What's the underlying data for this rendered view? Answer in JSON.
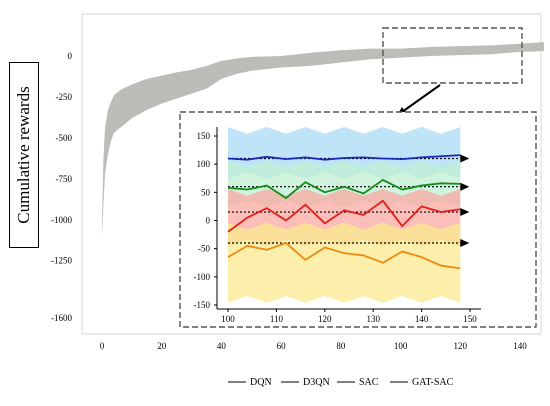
{
  "chart_data": [
    {
      "type": "area",
      "title": "",
      "xlabel": "",
      "ylabel": "Cumulative rewards",
      "xlim": [
        -8,
        150
      ],
      "ylim": [
        -1720,
        160
      ],
      "x_ticks": [
        "0",
        "20",
        "40",
        "60",
        "80",
        "100",
        "120",
        "140"
      ],
      "y_ticks": [
        "0",
        "-250",
        "-500",
        "-750",
        "-1000",
        "-1250",
        "-1600"
      ],
      "grid": false,
      "legend_position": "bottom-right",
      "band_color": "#b7b9b4",
      "series": [
        {
          "name": "",
          "x": [
            0,
            0.5,
            1,
            2,
            3,
            4,
            6,
            8,
            10,
            12,
            15,
            20,
            25,
            30,
            35,
            40,
            45,
            50,
            60,
            70,
            80,
            90,
            100,
            110,
            120,
            130,
            140,
            148
          ],
          "upper": [
            -1000,
            -620,
            -440,
            -330,
            -280,
            -240,
            -210,
            -190,
            -175,
            -160,
            -140,
            -120,
            -100,
            -85,
            -60,
            -30,
            -15,
            -5,
            0,
            20,
            35,
            45,
            45,
            55,
            60,
            65,
            75,
            85
          ],
          "lower": [
            -1100,
            -900,
            -720,
            -600,
            -520,
            -470,
            -440,
            -410,
            -380,
            -360,
            -330,
            -290,
            -260,
            -230,
            -200,
            -140,
            -110,
            -90,
            -70,
            -60,
            -40,
            -20,
            -10,
            0,
            5,
            10,
            25,
            30
          ]
        }
      ]
    },
    {
      "type": "line",
      "title": "",
      "xlabel": "",
      "ylabel": "",
      "xlim": [
        99,
        150
      ],
      "ylim": [
        -160,
        158
      ],
      "x_ticks": [
        "100",
        "110",
        "120",
        "130",
        "140",
        "150"
      ],
      "y_ticks": [
        "150",
        "100",
        "50",
        "0",
        "-50",
        "-100",
        "-150"
      ],
      "grid": false,
      "reference_lines": [
        110,
        60,
        15,
        -40
      ],
      "series": [
        {
          "name": "DQN",
          "color": "#1a28b5",
          "band_color": "#a9dbf5",
          "x": [
            100,
            104,
            108,
            112,
            116,
            120,
            124,
            128,
            132,
            136,
            140,
            144,
            148
          ],
          "y": [
            110,
            108,
            113,
            109,
            112,
            108,
            111,
            112,
            110,
            109,
            112,
            114,
            116
          ],
          "upper": 160,
          "lower": 80
        },
        {
          "name": "D3QN",
          "color": "#188a1c",
          "band_color": "#bfefd2",
          "x": [
            100,
            104,
            108,
            112,
            116,
            120,
            124,
            128,
            132,
            136,
            140,
            144,
            148
          ],
          "y": [
            58,
            55,
            62,
            40,
            68,
            50,
            60,
            48,
            72,
            55,
            62,
            66,
            65
          ],
          "upper": 100,
          "lower": 30
        },
        {
          "name": "SAC",
          "color": "#e0201c",
          "band_color": "#f9a8a2",
          "x": [
            100,
            104,
            108,
            112,
            116,
            120,
            124,
            128,
            132,
            136,
            140,
            144,
            148
          ],
          "y": [
            -20,
            5,
            22,
            0,
            28,
            -5,
            18,
            10,
            35,
            -10,
            25,
            15,
            20
          ],
          "upper": 50,
          "lower": -40
        },
        {
          "name": "GAT-SAC",
          "color": "#ef8a11",
          "band_color": "#f9e98f",
          "x": [
            100,
            104,
            108,
            112,
            116,
            120,
            124,
            128,
            132,
            136,
            140,
            144,
            148
          ],
          "y": [
            -65,
            -45,
            -52,
            -40,
            -70,
            -48,
            -58,
            -62,
            -75,
            -55,
            -65,
            -80,
            -85
          ],
          "upper": -10,
          "lower": -140
        }
      ]
    }
  ],
  "legend": [
    "DQN",
    "D3QN",
    "SAC",
    "GAT-SAC"
  ]
}
